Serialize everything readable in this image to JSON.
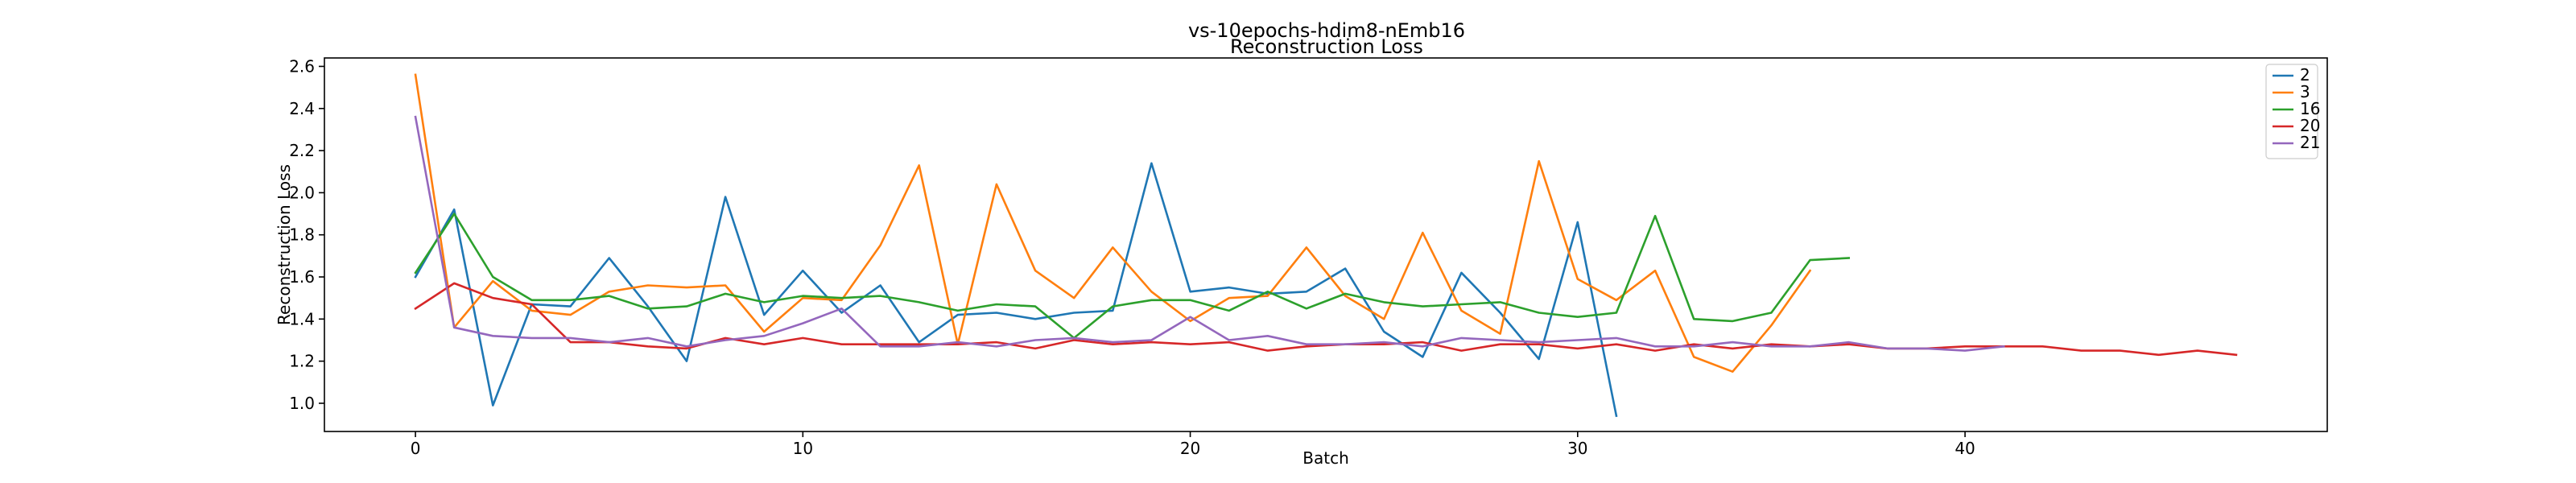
{
  "chart_data": {
    "type": "line",
    "title": "vs-10epochs-hdim8-nEmb16",
    "subtitle": "Reconstruction Loss",
    "xlabel": "Batch",
    "ylabel": "Reconstruction Loss",
    "xlim": [
      -2.35,
      49.35
    ],
    "ylim": [
      0.866,
      2.64
    ],
    "xticks": [
      0,
      10,
      20,
      30,
      40
    ],
    "yticks": [
      1.0,
      1.2,
      1.4,
      1.6,
      1.8,
      2.0,
      2.2,
      2.4,
      2.6
    ],
    "ytick_labels": [
      "1.0",
      "1.2",
      "1.4",
      "1.6",
      "1.8",
      "2.0",
      "2.2",
      "2.4",
      "2.6"
    ],
    "grid": false,
    "legend_position": "top-right",
    "series": [
      {
        "name": "2",
        "color": "#1f77b4",
        "x": [
          0,
          1,
          2,
          3,
          4,
          5,
          6,
          7,
          8,
          9,
          10,
          11,
          12,
          13,
          14,
          15,
          16,
          17,
          18,
          19,
          20,
          21,
          22,
          23,
          24,
          25,
          26,
          27,
          28,
          29,
          30,
          31
        ],
        "y": [
          1.6,
          1.92,
          0.99,
          1.47,
          1.46,
          1.69,
          1.46,
          1.2,
          1.98,
          1.42,
          1.63,
          1.43,
          1.56,
          1.29,
          1.42,
          1.43,
          1.4,
          1.43,
          1.44,
          2.14,
          1.53,
          1.55,
          1.52,
          1.53,
          1.64,
          1.34,
          1.22,
          1.62,
          1.43,
          1.21,
          1.86,
          0.94
        ]
      },
      {
        "name": "3",
        "color": "#ff7f0e",
        "x": [
          0,
          1,
          2,
          3,
          4,
          5,
          6,
          7,
          8,
          9,
          10,
          11,
          12,
          13,
          14,
          15,
          16,
          17,
          18,
          19,
          20,
          21,
          22,
          23,
          24,
          25,
          26,
          27,
          28,
          29,
          30,
          31,
          32,
          33,
          34,
          35,
          36
        ],
        "y": [
          2.56,
          1.36,
          1.58,
          1.44,
          1.42,
          1.53,
          1.56,
          1.55,
          1.56,
          1.34,
          1.5,
          1.49,
          1.75,
          2.13,
          1.28,
          2.04,
          1.63,
          1.5,
          1.74,
          1.53,
          1.39,
          1.5,
          1.51,
          1.74,
          1.51,
          1.4,
          1.81,
          1.44,
          1.33,
          2.15,
          1.59,
          1.49,
          1.63,
          1.22,
          1.15,
          1.37,
          1.63
        ]
      },
      {
        "name": "16",
        "color": "#2ca02c",
        "x": [
          0,
          1,
          2,
          3,
          4,
          5,
          6,
          7,
          8,
          9,
          10,
          11,
          12,
          13,
          14,
          15,
          16,
          17,
          18,
          19,
          20,
          21,
          22,
          23,
          24,
          25,
          26,
          27,
          28,
          29,
          30,
          31,
          32,
          33,
          34,
          35,
          36,
          37
        ],
        "y": [
          1.62,
          1.9,
          1.6,
          1.49,
          1.49,
          1.51,
          1.45,
          1.46,
          1.52,
          1.48,
          1.51,
          1.5,
          1.51,
          1.48,
          1.44,
          1.47,
          1.46,
          1.31,
          1.46,
          1.49,
          1.49,
          1.44,
          1.53,
          1.45,
          1.52,
          1.48,
          1.46,
          1.47,
          1.48,
          1.43,
          1.41,
          1.43,
          1.89,
          1.4,
          1.39,
          1.43,
          1.68,
          1.69
        ]
      },
      {
        "name": "20",
        "color": "#d62728",
        "x": [
          0,
          1,
          2,
          3,
          4,
          5,
          6,
          7,
          8,
          9,
          10,
          11,
          12,
          13,
          14,
          15,
          16,
          17,
          18,
          19,
          20,
          21,
          22,
          23,
          24,
          25,
          26,
          27,
          28,
          29,
          30,
          31,
          32,
          33,
          34,
          35,
          36,
          37,
          38,
          39,
          40,
          41,
          42,
          43,
          44,
          45,
          46,
          47
        ],
        "y": [
          1.45,
          1.57,
          1.5,
          1.47,
          1.29,
          1.29,
          1.27,
          1.26,
          1.31,
          1.28,
          1.31,
          1.28,
          1.28,
          1.28,
          1.28,
          1.29,
          1.26,
          1.3,
          1.28,
          1.29,
          1.28,
          1.29,
          1.25,
          1.27,
          1.28,
          1.28,
          1.29,
          1.25,
          1.28,
          1.28,
          1.26,
          1.28,
          1.25,
          1.28,
          1.26,
          1.28,
          1.27,
          1.28,
          1.26,
          1.26,
          1.27,
          1.27,
          1.27,
          1.25,
          1.25,
          1.23,
          1.25,
          1.23
        ]
      },
      {
        "name": "21",
        "color": "#9467bd",
        "x": [
          0,
          1,
          2,
          3,
          4,
          5,
          6,
          7,
          8,
          9,
          10,
          11,
          12,
          13,
          14,
          15,
          16,
          17,
          18,
          19,
          20,
          21,
          22,
          23,
          24,
          25,
          26,
          27,
          28,
          29,
          30,
          31,
          32,
          33,
          34,
          35,
          36,
          37,
          38,
          39,
          40,
          41
        ],
        "y": [
          2.36,
          1.36,
          1.32,
          1.31,
          1.31,
          1.29,
          1.31,
          1.27,
          1.3,
          1.32,
          1.38,
          1.45,
          1.27,
          1.27,
          1.29,
          1.27,
          1.3,
          1.31,
          1.29,
          1.3,
          1.41,
          1.3,
          1.32,
          1.28,
          1.28,
          1.29,
          1.27,
          1.31,
          1.3,
          1.29,
          1.3,
          1.31,
          1.27,
          1.27,
          1.29,
          1.27,
          1.27,
          1.29,
          1.26,
          1.26,
          1.25,
          1.27
        ]
      }
    ]
  }
}
